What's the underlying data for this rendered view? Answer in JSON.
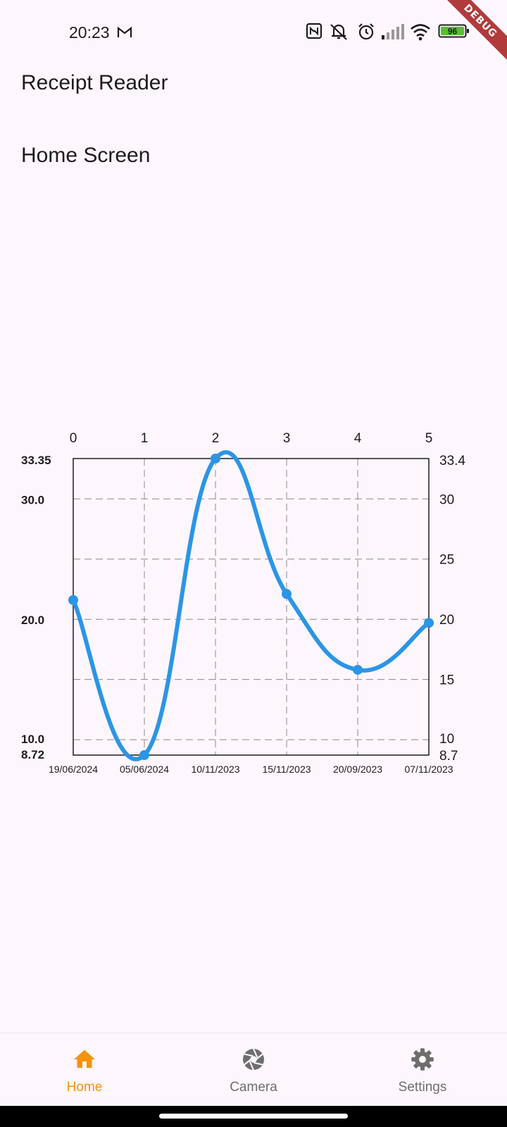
{
  "status_bar": {
    "time": "20:23",
    "battery_level": "96",
    "icons": [
      "mail-icon",
      "nfc-icon",
      "mute-icon",
      "alarm-icon",
      "signal-icon",
      "wifi-icon",
      "battery-icon"
    ]
  },
  "debug_banner": "DEBUG",
  "app_title": "Receipt Reader",
  "screen_title": "Home Screen",
  "colors": {
    "background": "#fdf6fc",
    "line": "#2b95e6",
    "accent": "#f7920a",
    "nav_inactive": "#6e6e6e"
  },
  "chart_data": {
    "type": "line",
    "x": [
      0,
      1,
      2,
      3,
      4,
      5
    ],
    "bottom_labels": [
      "19/06/2024",
      "05/06/2024",
      "10/11/2023",
      "15/11/2023",
      "20/09/2023",
      "07/11/2023"
    ],
    "series": [
      {
        "values": [
          21.6,
          8.72,
          33.35,
          22.1,
          15.8,
          19.7
        ]
      }
    ],
    "ylim": [
      8.72,
      33.35
    ],
    "left_ticks": [
      "33.35",
      "30.0",
      "20.0",
      "10.0",
      "8.72"
    ],
    "left_tick_values": [
      33.35,
      30,
      20,
      10,
      8.72
    ],
    "right_ticks": [
      "33.4",
      "30",
      "25",
      "20",
      "15",
      "10",
      "8.7"
    ],
    "right_tick_values": [
      33.35,
      30,
      25,
      20,
      15,
      10,
      8.72
    ],
    "top_ticks": [
      "0",
      "1",
      "2",
      "3",
      "4",
      "5"
    ],
    "grid_y": [
      30,
      25,
      20,
      15,
      10
    ],
    "grid": true,
    "curved": true
  },
  "nav": {
    "items": [
      {
        "label": "Home",
        "icon": "home-icon",
        "active": true
      },
      {
        "label": "Camera",
        "icon": "camera-shutter-icon",
        "active": false
      },
      {
        "label": "Settings",
        "icon": "gear-icon",
        "active": false
      }
    ]
  }
}
